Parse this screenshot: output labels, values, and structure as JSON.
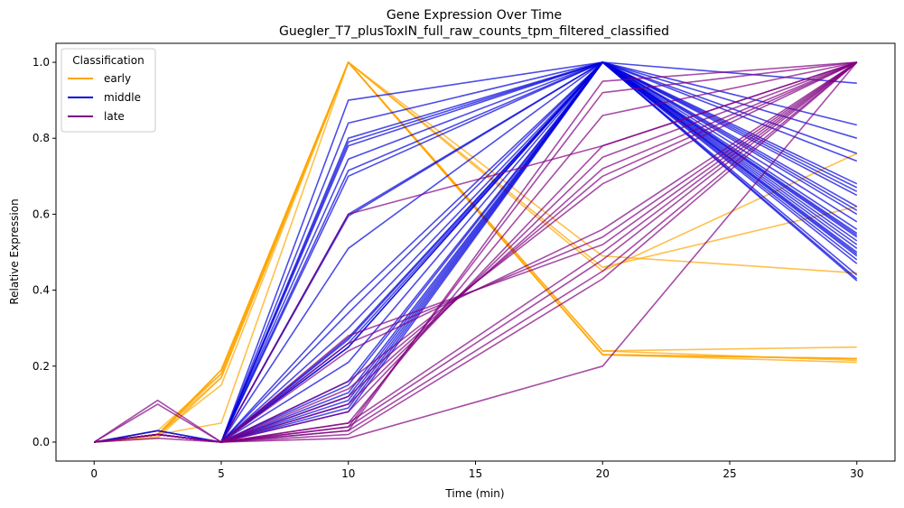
{
  "chart_data": {
    "type": "line",
    "title": "Gene Expression Over Time",
    "subtitle": "Guegler_T7_plusToxIN_full_raw_counts_tpm_filtered_classified",
    "xlabel": "Time (min)",
    "ylabel": "Relative Expression",
    "x": [
      0,
      2.5,
      5,
      10,
      20,
      30
    ],
    "x_ticks": [
      0,
      5,
      10,
      15,
      20,
      25,
      30
    ],
    "y_ticks": [
      0.0,
      0.2,
      0.4,
      0.6,
      0.8,
      1.0
    ],
    "x_tick_labels": [
      "0",
      "5",
      "10",
      "15",
      "20",
      "25",
      "30"
    ],
    "y_tick_labels": [
      "0.0",
      "0.2",
      "0.4",
      "0.6",
      "0.8",
      "1.0"
    ],
    "xlim": [
      -1.5,
      31.5
    ],
    "ylim": [
      -0.05,
      1.05
    ],
    "grid": false,
    "legend": {
      "title": "Classification",
      "placement": "top-left",
      "entries": [
        {
          "label": "early",
          "color": "#FFA500"
        },
        {
          "label": "middle",
          "color": "#0000DD"
        },
        {
          "label": "late",
          "color": "#800080"
        }
      ]
    },
    "series": [
      {
        "class": "early",
        "color": "#FFA500",
        "values": [
          0,
          0.02,
          0.19,
          1.0,
          0.23,
          0.22
        ]
      },
      {
        "class": "early",
        "color": "#FFA500",
        "values": [
          0,
          0.03,
          0.18,
          1.0,
          0.24,
          0.25
        ]
      },
      {
        "class": "early",
        "color": "#FFA500",
        "values": [
          0,
          0.01,
          0.17,
          1.0,
          0.23,
          0.21
        ]
      },
      {
        "class": "early",
        "color": "#FFA500",
        "values": [
          0,
          0.02,
          0.15,
          1.0,
          0.23,
          0.22
        ]
      },
      {
        "class": "early",
        "color": "#FFA500",
        "values": [
          0,
          0.02,
          0.18,
          1.0,
          0.24,
          0.215
        ]
      },
      {
        "class": "early",
        "color": "#FFA500",
        "values": [
          0,
          0.02,
          0.19,
          1.0,
          0.23,
          0.22
        ]
      },
      {
        "class": "early",
        "color": "#FFA500",
        "values": [
          0,
          0.015,
          0.19,
          1.0,
          0.49,
          0.445
        ]
      },
      {
        "class": "early",
        "color": "#FFA500",
        "values": [
          0,
          0.02,
          0.05,
          1.0,
          0.46,
          0.62
        ]
      },
      {
        "class": "early",
        "color": "#FFA500",
        "values": [
          0,
          0.02,
          0.17,
          1.0,
          0.45,
          0.76
        ]
      },
      {
        "class": "middle",
        "color": "#0000DD",
        "values": [
          0,
          0.03,
          0,
          0.9,
          1.0,
          0.945
        ]
      },
      {
        "class": "middle",
        "color": "#0000DD",
        "values": [
          0,
          0.03,
          0,
          0.84,
          1.0,
          0.835
        ]
      },
      {
        "class": "middle",
        "color": "#0000DD",
        "values": [
          0,
          0.02,
          0,
          0.8,
          1.0,
          0.8
        ]
      },
      {
        "class": "middle",
        "color": "#0000DD",
        "values": [
          0,
          0.02,
          0,
          0.79,
          1.0,
          0.76
        ]
      },
      {
        "class": "middle",
        "color": "#0000DD",
        "values": [
          0,
          0.02,
          0,
          0.78,
          1.0,
          0.74
        ]
      },
      {
        "class": "middle",
        "color": "#0000DD",
        "values": [
          0,
          0.02,
          0,
          0.745,
          1.0,
          0.68
        ]
      },
      {
        "class": "middle",
        "color": "#0000DD",
        "values": [
          0,
          0.02,
          0,
          0.715,
          1.0,
          0.67
        ]
      },
      {
        "class": "middle",
        "color": "#0000DD",
        "values": [
          0,
          0.02,
          0,
          0.7,
          1.0,
          0.66
        ]
      },
      {
        "class": "middle",
        "color": "#0000DD",
        "values": [
          0,
          0.02,
          0,
          0.6,
          1.0,
          0.65
        ]
      },
      {
        "class": "middle",
        "color": "#0000DD",
        "values": [
          0,
          0.02,
          0,
          0.595,
          1.0,
          0.62
        ]
      },
      {
        "class": "middle",
        "color": "#0000DD",
        "values": [
          0,
          0.02,
          0,
          0.51,
          1.0,
          0.61
        ]
      },
      {
        "class": "middle",
        "color": "#0000DD",
        "values": [
          0,
          0.02,
          0,
          0.365,
          1.0,
          0.6
        ]
      },
      {
        "class": "middle",
        "color": "#0000DD",
        "values": [
          0,
          0.02,
          0,
          0.34,
          1.0,
          0.58
        ]
      },
      {
        "class": "middle",
        "color": "#0000DD",
        "values": [
          0,
          0.02,
          0,
          0.3,
          1.0,
          0.56
        ]
      },
      {
        "class": "middle",
        "color": "#0000DD",
        "values": [
          0,
          0.02,
          0,
          0.275,
          1.0,
          0.55
        ]
      },
      {
        "class": "middle",
        "color": "#0000DD",
        "values": [
          0,
          0.02,
          0,
          0.27,
          1.0,
          0.545
        ]
      },
      {
        "class": "middle",
        "color": "#0000DD",
        "values": [
          0,
          0.02,
          0,
          0.26,
          1.0,
          0.54
        ]
      },
      {
        "class": "middle",
        "color": "#0000DD",
        "values": [
          0,
          0.02,
          0,
          0.25,
          1.0,
          0.53
        ]
      },
      {
        "class": "middle",
        "color": "#0000DD",
        "values": [
          0,
          0.02,
          0,
          0.21,
          1.0,
          0.52
        ]
      },
      {
        "class": "middle",
        "color": "#0000DD",
        "values": [
          0,
          0.02,
          0,
          0.16,
          1.0,
          0.51
        ]
      },
      {
        "class": "middle",
        "color": "#0000DD",
        "values": [
          0,
          0.02,
          0,
          0.13,
          1.0,
          0.5
        ]
      },
      {
        "class": "middle",
        "color": "#0000DD",
        "values": [
          0,
          0.02,
          0,
          0.11,
          1.0,
          0.495
        ]
      },
      {
        "class": "middle",
        "color": "#0000DD",
        "values": [
          0,
          0.02,
          0,
          0.1,
          1.0,
          0.49
        ]
      },
      {
        "class": "middle",
        "color": "#0000DD",
        "values": [
          0,
          0.02,
          0,
          0.15,
          1.0,
          0.48
        ]
      },
      {
        "class": "middle",
        "color": "#0000DD",
        "values": [
          0,
          0.02,
          0,
          0.12,
          1.0,
          0.47
        ]
      },
      {
        "class": "middle",
        "color": "#0000DD",
        "values": [
          0,
          0.02,
          0,
          0.09,
          1.0,
          0.44
        ]
      },
      {
        "class": "middle",
        "color": "#0000DD",
        "values": [
          0,
          0.02,
          0,
          0.08,
          1.0,
          0.43
        ]
      },
      {
        "class": "middle",
        "color": "#0000DD",
        "values": [
          0,
          0.02,
          0,
          0.25,
          1.0,
          0.425
        ]
      },
      {
        "class": "late",
        "color": "#800080",
        "values": [
          0,
          0.11,
          0,
          0.03,
          0.95,
          1.0
        ]
      },
      {
        "class": "late",
        "color": "#800080",
        "values": [
          0,
          0.1,
          0,
          0.04,
          0.92,
          1.0
        ]
      },
      {
        "class": "late",
        "color": "#800080",
        "values": [
          0,
          0.02,
          0,
          0.05,
          0.86,
          1.0
        ]
      },
      {
        "class": "late",
        "color": "#800080",
        "values": [
          0,
          0.02,
          0,
          0.08,
          0.78,
          1.0
        ]
      },
      {
        "class": "late",
        "color": "#800080",
        "values": [
          0,
          0.02,
          0,
          0.1,
          0.75,
          1.0
        ]
      },
      {
        "class": "late",
        "color": "#800080",
        "values": [
          0,
          0.02,
          0,
          0.12,
          0.72,
          1.0
        ]
      },
      {
        "class": "late",
        "color": "#800080",
        "values": [
          0,
          0.02,
          0,
          0.14,
          0.7,
          1.0
        ]
      },
      {
        "class": "late",
        "color": "#800080",
        "values": [
          0,
          0.02,
          0,
          0.16,
          0.68,
          1.0
        ]
      },
      {
        "class": "late",
        "color": "#800080",
        "values": [
          0,
          0.02,
          0,
          0.24,
          0.56,
          1.0
        ]
      },
      {
        "class": "late",
        "color": "#800080",
        "values": [
          0,
          0.02,
          0,
          0.26,
          0.54,
          1.0
        ]
      },
      {
        "class": "late",
        "color": "#800080",
        "values": [
          0,
          0.02,
          0,
          0.28,
          0.52,
          1.0
        ]
      },
      {
        "class": "late",
        "color": "#800080",
        "values": [
          0,
          0.02,
          0,
          0.6,
          0.78,
          1.0
        ]
      },
      {
        "class": "late",
        "color": "#800080",
        "values": [
          0,
          0.02,
          0,
          0.05,
          0.5,
          1.0
        ]
      },
      {
        "class": "late",
        "color": "#800080",
        "values": [
          0,
          0.02,
          0,
          0.04,
          0.48,
          1.0
        ]
      },
      {
        "class": "late",
        "color": "#800080",
        "values": [
          0,
          0.02,
          0,
          0.03,
          0.45,
          1.0
        ]
      },
      {
        "class": "late",
        "color": "#800080",
        "values": [
          0,
          0.02,
          0,
          0.02,
          0.43,
          1.0
        ]
      },
      {
        "class": "late",
        "color": "#800080",
        "values": [
          0,
          0.01,
          0,
          0.01,
          0.2,
          1.0
        ]
      }
    ]
  }
}
